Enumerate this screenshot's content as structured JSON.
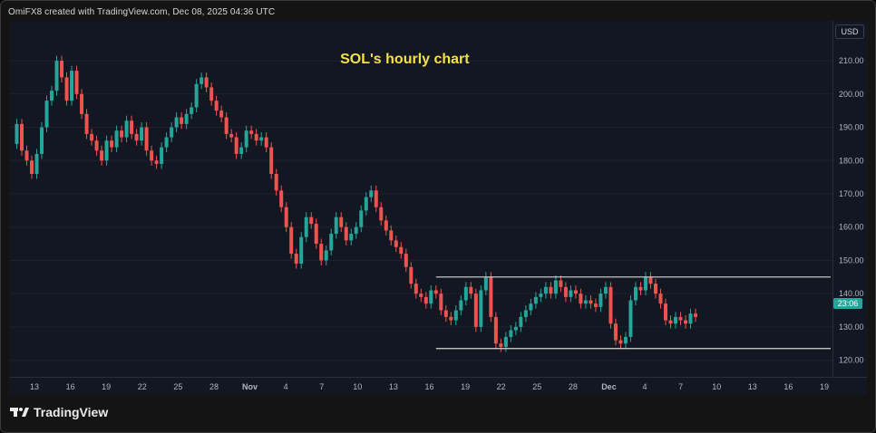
{
  "header": {
    "credit": "OmiFX8 created with TradingView.com, Dec 08, 2025 04:36 UTC"
  },
  "currency_label": "USD",
  "last_price_label": "23:06",
  "brand": {
    "name": "TradingView",
    "logo_icon": "tradingview-logo-icon"
  },
  "colors": {
    "background": "#131722",
    "up": "#26a69a",
    "down": "#ef5350",
    "title": "#f5e04a",
    "line": "#d9d9d9"
  },
  "chart_data": {
    "type": "line",
    "title": "SOL's hourly chart",
    "price_ticks": [
      210,
      200,
      190,
      180,
      170,
      160,
      150,
      140,
      130,
      120
    ],
    "price_tick_labels": [
      "210.00",
      "200.00",
      "190.00",
      "180.00",
      "170.00",
      "160.00",
      "150.00",
      "140.00",
      "130.00",
      "120.00"
    ],
    "ylim": [
      115,
      222
    ],
    "time_ticks": [
      "13",
      "16",
      "19",
      "22",
      "25",
      "28",
      "Nov",
      "4",
      "7",
      "10",
      "13",
      "16",
      "19",
      "22",
      "25",
      "28",
      "Dec",
      "4",
      "7",
      "10",
      "13",
      "16",
      "19"
    ],
    "series": [
      {
        "values": [
          185,
          191,
          183,
          180,
          176,
          182,
          190,
          198,
          201,
          210,
          205,
          198,
          207,
          200,
          194,
          188,
          186,
          183,
          180,
          186,
          184,
          189,
          187,
          192,
          188,
          186,
          190,
          183,
          180,
          179,
          184,
          187,
          190,
          193,
          191,
          194,
          196,
          203,
          205,
          202,
          198,
          195,
          193,
          188,
          187,
          182,
          184,
          189,
          188,
          186,
          187,
          184,
          176,
          171,
          166,
          160,
          152,
          149,
          157,
          163,
          161,
          155,
          150,
          153,
          158,
          163,
          160,
          156,
          158,
          160,
          165,
          169,
          171,
          166,
          162,
          159,
          156,
          154,
          152,
          148,
          143,
          140,
          139,
          137,
          141,
          140,
          135,
          133,
          132,
          135,
          138,
          142,
          140,
          130,
          141,
          145,
          133,
          125,
          124,
          127,
          129,
          130,
          133,
          135,
          137,
          139,
          140,
          142,
          140,
          144,
          142,
          139,
          141,
          140,
          137,
          138,
          137,
          136,
          140,
          142,
          131,
          126,
          125,
          127,
          138,
          142,
          141,
          145,
          143,
          140,
          137,
          132,
          131,
          133,
          132,
          131,
          134,
          133
        ]
      }
    ],
    "annotations": [
      {
        "type": "horizontal-segment",
        "y": 145,
        "x_from_index": 85,
        "x_to_index": 137
      },
      {
        "type": "horizontal-segment",
        "y": 123.5,
        "x_from_index": 85,
        "x_to_index": 137
      }
    ],
    "last_price": 133
  }
}
